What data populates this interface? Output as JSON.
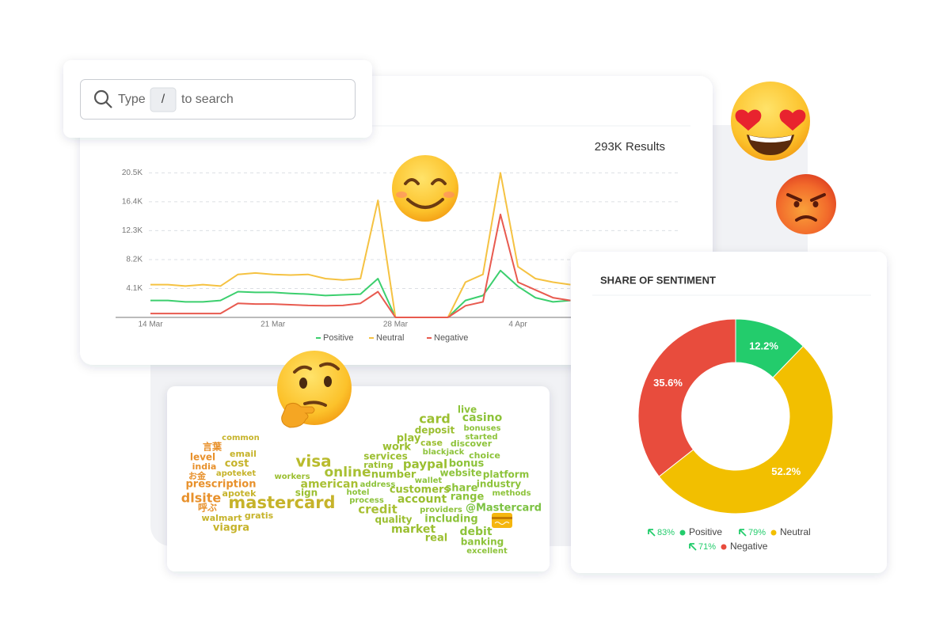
{
  "search": {
    "label_before": "Type",
    "key": "/",
    "label_after": "to search"
  },
  "results": "293K Results",
  "chart_data": [
    {
      "type": "line",
      "categories": [
        "14 Mar",
        null,
        null,
        null,
        null,
        null,
        null,
        "21 Mar",
        null,
        null,
        null,
        null,
        null,
        null,
        "28 Mar",
        null,
        null,
        null,
        null,
        null,
        null,
        "4 Apr",
        null,
        null,
        null
      ],
      "series": [
        {
          "name": "Positive",
          "color": "#3ccf6e",
          "values": [
            2400,
            2400,
            2200,
            2200,
            2400,
            3650,
            3550,
            3550,
            3400,
            3300,
            3100,
            3200,
            3300,
            5500,
            0,
            0,
            0,
            0,
            2400,
            3100,
            6650,
            4400,
            2800,
            2200,
            2400
          ]
        },
        {
          "name": "Neutral",
          "color": "#f5c242",
          "values": [
            4650,
            4650,
            4450,
            4650,
            4450,
            6100,
            6300,
            6100,
            6000,
            6100,
            5500,
            5300,
            5500,
            16600,
            0,
            0,
            0,
            0,
            5000,
            6100,
            20500,
            7200,
            5500,
            5000,
            4650
          ]
        },
        {
          "name": "Negative",
          "color": "#e85a4f",
          "values": [
            550,
            550,
            550,
            550,
            550,
            2000,
            1900,
            1900,
            1800,
            1700,
            1650,
            1700,
            2000,
            3650,
            0,
            0,
            0,
            0,
            1650,
            2200,
            14600,
            5000,
            3900,
            2800,
            2400
          ]
        }
      ],
      "ylim": [
        0,
        22000
      ],
      "yticks": [
        {
          "value": 4100,
          "label": "4.1K"
        },
        {
          "value": 8200,
          "label": "8.2K"
        },
        {
          "value": 12300,
          "label": "12.3K"
        },
        {
          "value": 16400,
          "label": "16.4K"
        },
        {
          "value": 20500,
          "label": "20.5K"
        }
      ],
      "grid": true,
      "legend": "bottom"
    },
    {
      "type": "donut",
      "title": "SHARE OF SENTIMENT",
      "categories": [
        "Positive",
        "Neutral",
        "Negative"
      ],
      "values": [
        12.2,
        52.2,
        35.6
      ],
      "value_labels": [
        "12.2%",
        "52.2%",
        "35.6%"
      ],
      "colors": [
        "#23cc6c",
        "#f2bf00",
        "#e84c3d"
      ],
      "changes": [
        83,
        79,
        71
      ],
      "change_labels": [
        "83%",
        "79%",
        "71%"
      ]
    }
  ],
  "word_cloud": {
    "words": [
      "common",
      "言葉",
      "email",
      "level",
      "cost",
      "india",
      "apoteket",
      "お金",
      "prescription",
      "apotek",
      "dlsite",
      "mastercard",
      "呼ぶ",
      "gratis",
      "walmart",
      "viagra",
      "visa",
      "workers",
      "online",
      "american",
      "sign",
      "address",
      "hotel",
      "process",
      "credit",
      "quality",
      "market",
      "real",
      "card",
      "live",
      "casino",
      "deposit",
      "bonuses",
      "started",
      "play",
      "case",
      "discover",
      "work",
      "blackjack",
      "choice",
      "services",
      "rating",
      "bonus",
      "paypal",
      "number",
      "website",
      "platform",
      "wallet",
      "share",
      "industry",
      "customers",
      "methods",
      "range",
      "account",
      "@Mastercard",
      "providers",
      "including",
      "debit",
      "banking",
      "excellent"
    ]
  }
}
